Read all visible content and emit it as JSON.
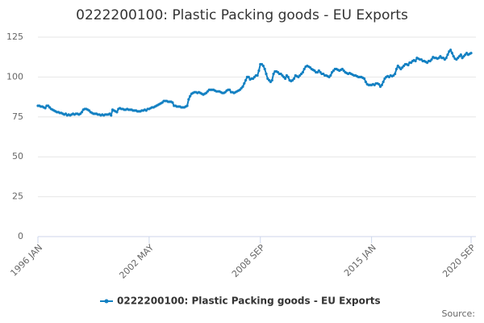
{
  "chart_data": {
    "type": "line",
    "title": "0222200100: Plastic Packing goods - EU Exports",
    "source": "Source:",
    "categories": [
      "1996 JAN",
      null,
      null,
      null,
      null,
      null,
      null,
      null,
      null,
      null,
      null,
      null,
      null,
      null,
      null,
      null,
      null,
      null,
      null,
      null,
      null,
      null,
      null,
      null,
      null,
      null,
      null,
      null,
      null,
      null,
      null,
      null,
      null,
      null,
      null,
      null,
      null,
      null,
      null,
      null,
      null,
      null,
      null,
      null,
      null,
      null,
      null,
      null,
      null,
      null,
      null,
      null,
      null,
      null,
      null,
      null,
      null,
      null,
      null,
      null,
      null,
      null,
      null,
      null,
      null,
      null,
      null,
      null,
      null,
      null,
      null,
      null,
      null,
      null,
      null,
      null,
      "2002 MAY",
      null,
      null,
      null,
      null,
      null,
      null,
      null,
      null,
      null,
      null,
      null,
      null,
      null,
      null,
      null,
      null,
      null,
      null,
      null,
      null,
      null,
      null,
      null,
      null,
      null,
      null,
      null,
      null,
      null,
      null,
      null,
      null,
      null,
      null,
      null,
      null,
      null,
      null,
      null,
      null,
      null,
      null,
      null,
      null,
      null,
      null,
      null,
      null,
      null,
      null,
      null,
      null,
      null,
      null,
      null,
      null,
      null,
      null,
      null,
      null,
      null,
      null,
      null,
      null,
      null,
      null,
      null,
      null,
      null,
      null,
      null,
      null,
      null,
      null,
      null,
      "2008 SEP",
      null,
      null,
      null,
      null,
      null,
      null,
      null,
      null,
      null,
      null,
      null,
      null,
      null,
      null,
      null,
      null,
      null,
      null,
      null,
      null,
      null,
      null,
      null,
      null,
      null,
      null,
      null,
      null,
      null,
      null,
      null,
      null,
      null,
      null,
      null,
      null,
      null,
      null,
      null,
      null,
      null,
      null,
      null,
      null,
      null,
      null,
      null,
      null,
      null,
      null,
      null,
      null,
      null,
      null,
      null,
      null,
      null,
      null,
      null,
      null,
      null,
      null,
      null,
      null,
      null,
      null,
      null,
      null,
      null,
      null,
      null,
      null,
      null,
      null,
      null,
      "2015 JAN",
      null,
      null,
      null,
      null,
      null,
      null,
      null,
      null,
      null,
      null,
      null,
      null,
      null,
      null,
      null,
      null,
      null,
      null,
      null,
      null,
      null,
      null,
      null,
      null,
      null,
      null,
      null,
      null,
      null,
      null,
      null,
      null,
      null,
      null,
      null,
      null,
      null,
      null,
      null,
      null,
      null,
      null,
      null,
      null,
      null,
      null,
      null,
      null,
      null,
      null,
      null,
      null,
      null,
      null,
      null,
      null,
      null,
      null,
      null,
      null,
      null,
      null,
      null,
      null,
      null,
      null,
      null,
      "2020 SEP"
    ],
    "series": [
      {
        "name": "0222200100: Plastic Packing goods - EU Exports",
        "color": "#1380c2",
        "values": [
          82,
          82,
          81.5,
          81.5,
          81,
          80.5,
          82,
          82,
          81,
          80,
          79.5,
          79,
          78.5,
          78,
          78,
          77.5,
          77.5,
          77,
          76.5,
          77,
          76,
          76.5,
          76,
          76.5,
          77,
          76.5,
          77,
          77,
          76.5,
          77,
          78,
          79.5,
          80,
          80,
          79.5,
          79,
          78,
          77.5,
          77,
          77,
          77,
          76.5,
          76.5,
          76,
          76.5,
          76,
          76.5,
          76.5,
          76.5,
          77,
          76,
          79.5,
          79,
          78.5,
          78,
          80,
          80.5,
          80,
          80,
          79.5,
          79.5,
          80,
          79.5,
          79.5,
          79.5,
          79,
          79,
          79,
          78.5,
          78.5,
          78.5,
          79,
          79,
          79.5,
          79,
          80,
          80,
          80.5,
          81,
          81,
          81.5,
          82,
          82.5,
          83,
          83.5,
          84,
          85,
          85,
          85,
          84.5,
          84.5,
          84.5,
          84,
          82,
          82,
          81.5,
          81.5,
          81.5,
          81,
          81,
          81,
          81.5,
          82,
          86,
          88,
          89.5,
          90,
          90.5,
          90.5,
          90,
          90.5,
          90,
          89.5,
          89,
          89.5,
          90,
          91,
          92,
          92,
          92,
          92,
          91.5,
          91,
          91,
          91,
          90.5,
          90,
          90,
          90.5,
          91.5,
          92,
          92,
          90.5,
          90.5,
          90,
          90.5,
          91,
          91.5,
          92,
          93,
          94,
          96,
          98,
          100,
          100,
          98.5,
          99,
          99,
          100,
          101,
          101,
          104,
          108,
          108,
          107,
          105,
          102,
          99,
          98,
          97,
          98,
          102,
          103.5,
          103.5,
          103,
          102,
          102,
          101,
          100,
          99,
          101,
          100,
          98,
          97.5,
          98,
          99,
          101,
          100.5,
          100,
          101,
          102,
          103,
          105,
          106.5,
          107,
          106.5,
          106,
          105,
          104.5,
          104,
          103,
          103,
          104,
          103,
          102,
          102,
          101,
          101,
          100.5,
          100,
          101,
          103,
          104,
          105,
          105,
          104.5,
          104,
          104.5,
          105,
          104,
          103,
          102.5,
          102,
          102.5,
          102,
          101.5,
          101,
          101,
          100.5,
          100,
          100,
          100,
          99.5,
          99,
          97,
          95.5,
          95,
          95,
          95,
          95.5,
          95,
          96,
          96,
          95.5,
          94,
          95,
          97,
          99,
          100,
          100.5,
          100,
          101,
          100.5,
          101,
          102,
          105,
          107,
          106,
          105,
          106,
          107,
          108,
          108,
          107.5,
          109,
          109,
          110,
          110.5,
          110,
          112,
          111.5,
          111,
          111,
          110,
          110,
          109.5,
          109,
          110,
          110,
          111,
          112.5,
          112,
          112,
          111.5,
          112,
          113,
          112,
          112,
          111,
          112,
          114,
          116,
          117,
          115,
          113,
          111.5,
          111,
          112,
          113,
          114,
          112,
          113,
          114,
          115,
          114,
          114.5,
          115
        ]
      }
    ],
    "ylim": [
      0,
      125
    ],
    "yticks": [
      0,
      25,
      50,
      75,
      100,
      125
    ],
    "grid": true
  }
}
